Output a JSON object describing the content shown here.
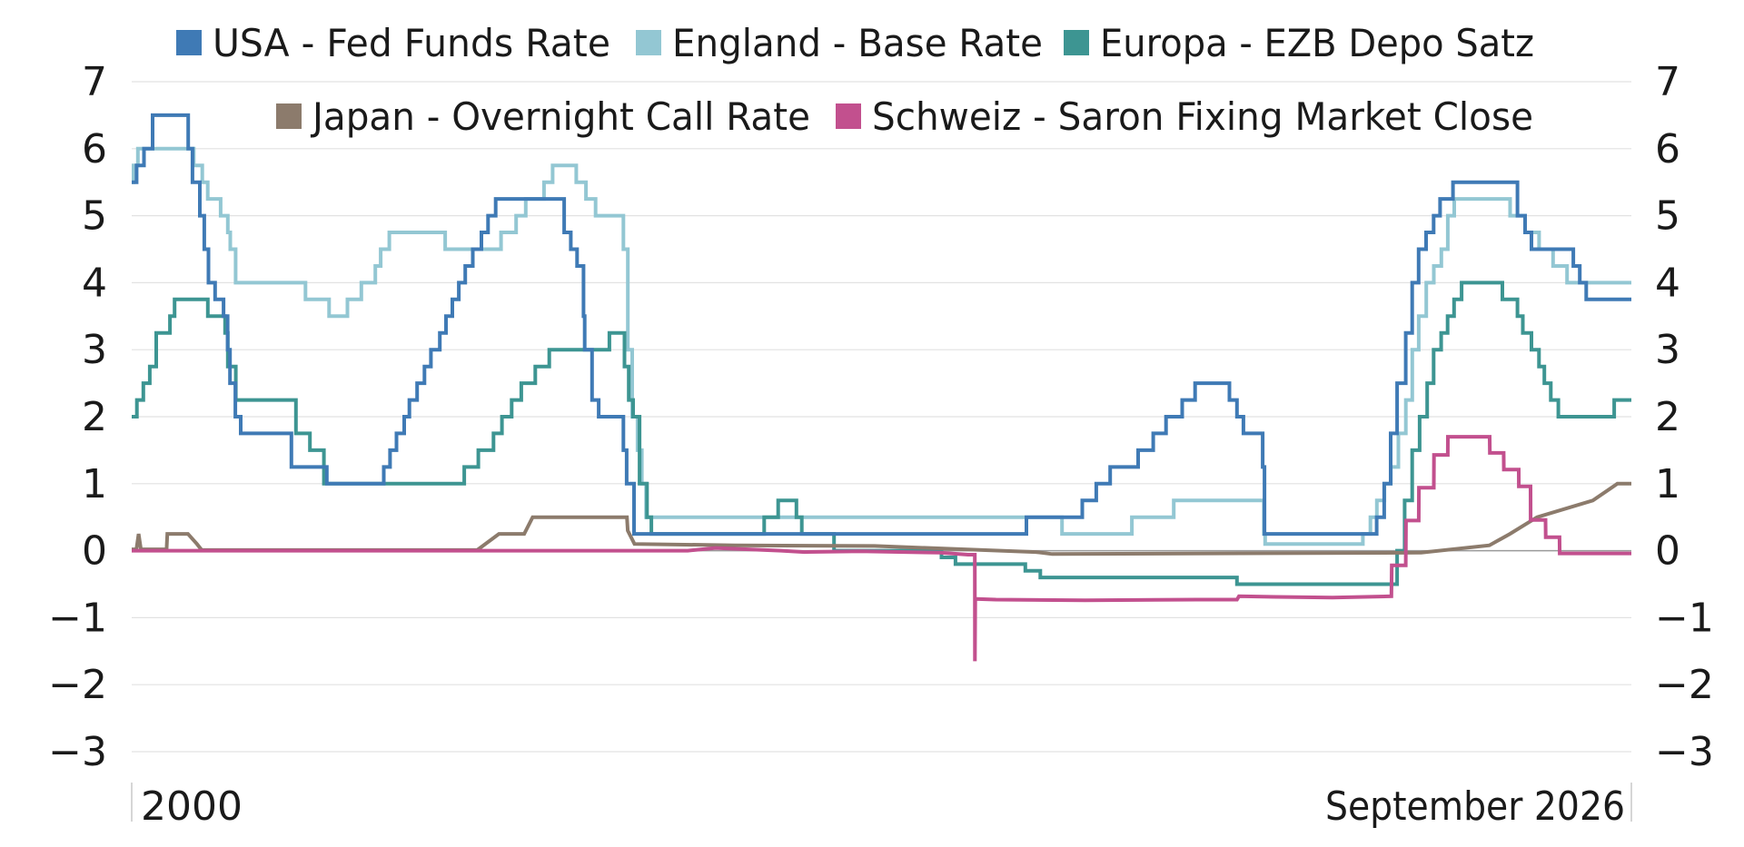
{
  "chart_data": {
    "type": "line",
    "title": "",
    "xlabel": "",
    "ylabel": "",
    "x_range": [
      "2000-01-01",
      "2026-09-30"
    ],
    "x_start_label": "2000",
    "x_end_label": "September 2026",
    "ylim": [
      -3,
      7
    ],
    "y_ticks": [
      7,
      6,
      5,
      4,
      3,
      2,
      1,
      0,
      -1,
      -2,
      -3
    ],
    "y_tick_labels": [
      "7",
      "6",
      "5",
      "4",
      "3",
      "2",
      "1",
      "0",
      "−1",
      "−2",
      "−3"
    ],
    "right_axis": true,
    "grid": true,
    "legend_position": "top",
    "series": [
      {
        "name": "USA - Fed Funds Rate",
        "color": "#3f7ab5",
        "step": true,
        "points": [
          [
            "2000-01-01",
            5.5
          ],
          [
            "2000-02-02",
            5.75
          ],
          [
            "2000-03-21",
            6.0
          ],
          [
            "2000-05-16",
            6.5
          ],
          [
            "2001-01-03",
            6.0
          ],
          [
            "2001-01-31",
            5.5
          ],
          [
            "2001-03-20",
            5.0
          ],
          [
            "2001-04-18",
            4.5
          ],
          [
            "2001-05-15",
            4.0
          ],
          [
            "2001-06-27",
            3.75
          ],
          [
            "2001-08-21",
            3.5
          ],
          [
            "2001-09-17",
            3.0
          ],
          [
            "2001-10-02",
            2.5
          ],
          [
            "2001-11-06",
            2.0
          ],
          [
            "2001-12-11",
            1.75
          ],
          [
            "2002-11-06",
            1.25
          ],
          [
            "2003-06-25",
            1.0
          ],
          [
            "2004-06-30",
            1.25
          ],
          [
            "2004-08-10",
            1.5
          ],
          [
            "2004-09-21",
            1.75
          ],
          [
            "2004-11-10",
            2.0
          ],
          [
            "2004-12-14",
            2.25
          ],
          [
            "2005-02-02",
            2.5
          ],
          [
            "2005-03-22",
            2.75
          ],
          [
            "2005-05-03",
            3.0
          ],
          [
            "2005-06-30",
            3.25
          ],
          [
            "2005-08-09",
            3.5
          ],
          [
            "2005-09-20",
            3.75
          ],
          [
            "2005-11-01",
            4.0
          ],
          [
            "2005-12-13",
            4.25
          ],
          [
            "2006-01-31",
            4.5
          ],
          [
            "2006-03-28",
            4.75
          ],
          [
            "2006-05-10",
            5.0
          ],
          [
            "2006-06-29",
            5.25
          ],
          [
            "2007-09-18",
            4.75
          ],
          [
            "2007-10-31",
            4.5
          ],
          [
            "2007-12-11",
            4.25
          ],
          [
            "2008-01-22",
            3.5
          ],
          [
            "2008-01-30",
            3.0
          ],
          [
            "2008-03-18",
            2.25
          ],
          [
            "2008-04-30",
            2.0
          ],
          [
            "2008-10-08",
            1.5
          ],
          [
            "2008-10-29",
            1.0
          ],
          [
            "2008-12-16",
            0.25
          ],
          [
            "2015-12-16",
            0.5
          ],
          [
            "2016-12-14",
            0.75
          ],
          [
            "2017-03-15",
            1.0
          ],
          [
            "2017-06-14",
            1.25
          ],
          [
            "2017-12-13",
            1.5
          ],
          [
            "2018-03-21",
            1.75
          ],
          [
            "2018-06-13",
            2.0
          ],
          [
            "2018-09-26",
            2.25
          ],
          [
            "2018-12-19",
            2.5
          ],
          [
            "2019-07-31",
            2.25
          ],
          [
            "2019-09-18",
            2.0
          ],
          [
            "2019-10-30",
            1.75
          ],
          [
            "2020-03-03",
            1.25
          ],
          [
            "2020-03-15",
            0.25
          ],
          [
            "2022-03-16",
            0.5
          ],
          [
            "2022-05-04",
            1.0
          ],
          [
            "2022-06-15",
            1.75
          ],
          [
            "2022-07-27",
            2.5
          ],
          [
            "2022-09-21",
            3.25
          ],
          [
            "2022-11-02",
            4.0
          ],
          [
            "2022-12-14",
            4.5
          ],
          [
            "2023-02-01",
            4.75
          ],
          [
            "2023-03-22",
            5.0
          ],
          [
            "2023-05-03",
            5.25
          ],
          [
            "2023-07-26",
            5.5
          ],
          [
            "2024-09-18",
            5.0
          ],
          [
            "2024-11-07",
            4.75
          ],
          [
            "2024-12-18",
            4.5
          ],
          [
            "2025-09-17",
            4.25
          ],
          [
            "2025-10-29",
            4.0
          ],
          [
            "2025-12-10",
            3.75
          ],
          [
            "2026-09-30",
            3.75
          ]
        ]
      },
      {
        "name": "England - Base Rate",
        "color": "#93c7d3",
        "step": true,
        "points": [
          [
            "2000-01-01",
            5.5
          ],
          [
            "2000-01-13",
            5.75
          ],
          [
            "2000-02-10",
            6.0
          ],
          [
            "2001-02-08",
            5.75
          ],
          [
            "2001-04-05",
            5.5
          ],
          [
            "2001-05-10",
            5.25
          ],
          [
            "2001-08-02",
            5.0
          ],
          [
            "2001-09-18",
            4.75
          ],
          [
            "2001-10-04",
            4.5
          ],
          [
            "2001-11-08",
            4.0
          ],
          [
            "2003-02-06",
            3.75
          ],
          [
            "2003-07-10",
            3.5
          ],
          [
            "2003-11-06",
            3.75
          ],
          [
            "2004-02-05",
            4.0
          ],
          [
            "2004-05-06",
            4.25
          ],
          [
            "2004-06-10",
            4.5
          ],
          [
            "2004-08-05",
            4.75
          ],
          [
            "2005-08-04",
            4.5
          ],
          [
            "2006-08-03",
            4.75
          ],
          [
            "2006-11-09",
            5.0
          ],
          [
            "2007-01-11",
            5.25
          ],
          [
            "2007-05-10",
            5.5
          ],
          [
            "2007-07-05",
            5.75
          ],
          [
            "2007-12-06",
            5.5
          ],
          [
            "2008-02-07",
            5.25
          ],
          [
            "2008-04-10",
            5.0
          ],
          [
            "2008-10-08",
            4.5
          ],
          [
            "2008-11-06",
            3.0
          ],
          [
            "2008-12-04",
            2.0
          ],
          [
            "2009-01-08",
            1.5
          ],
          [
            "2009-02-05",
            1.0
          ],
          [
            "2009-03-05",
            0.5
          ],
          [
            "2016-08-04",
            0.25
          ],
          [
            "2017-11-02",
            0.5
          ],
          [
            "2018-08-02",
            0.75
          ],
          [
            "2020-03-11",
            0.25
          ],
          [
            "2020-03-19",
            0.1
          ],
          [
            "2021-12-16",
            0.25
          ],
          [
            "2022-02-03",
            0.5
          ],
          [
            "2022-03-17",
            0.75
          ],
          [
            "2022-05-05",
            1.0
          ],
          [
            "2022-06-16",
            1.25
          ],
          [
            "2022-08-04",
            1.75
          ],
          [
            "2022-09-22",
            2.25
          ],
          [
            "2022-11-03",
            3.0
          ],
          [
            "2022-12-15",
            3.5
          ],
          [
            "2023-02-02",
            4.0
          ],
          [
            "2023-03-23",
            4.25
          ],
          [
            "2023-05-11",
            4.5
          ],
          [
            "2023-06-22",
            5.0
          ],
          [
            "2023-08-03",
            5.25
          ],
          [
            "2024-08-01",
            5.0
          ],
          [
            "2024-11-07",
            4.75
          ],
          [
            "2025-02-06",
            4.5
          ],
          [
            "2025-05-08",
            4.25
          ],
          [
            "2025-08-07",
            4.0
          ],
          [
            "2026-09-30",
            4.0
          ]
        ]
      },
      {
        "name": "Europa - EZB Depo Satz",
        "color": "#3d9592",
        "step": true,
        "points": [
          [
            "2000-01-01",
            2.0
          ],
          [
            "2000-02-04",
            2.25
          ],
          [
            "2000-03-17",
            2.5
          ],
          [
            "2000-04-28",
            2.75
          ],
          [
            "2000-06-09",
            3.25
          ],
          [
            "2000-09-06",
            3.5
          ],
          [
            "2000-10-06",
            3.75
          ],
          [
            "2001-05-11",
            3.5
          ],
          [
            "2001-08-31",
            3.25
          ],
          [
            "2001-09-18",
            2.75
          ],
          [
            "2001-11-09",
            2.25
          ],
          [
            "2002-12-06",
            1.75
          ],
          [
            "2003-03-07",
            1.5
          ],
          [
            "2003-06-06",
            1.0
          ],
          [
            "2005-12-06",
            1.25
          ],
          [
            "2006-03-08",
            1.5
          ],
          [
            "2006-06-15",
            1.75
          ],
          [
            "2006-08-09",
            2.0
          ],
          [
            "2006-10-11",
            2.25
          ],
          [
            "2006-12-13",
            2.5
          ],
          [
            "2007-03-14",
            2.75
          ],
          [
            "2007-06-13",
            3.0
          ],
          [
            "2008-07-09",
            3.25
          ],
          [
            "2008-10-15",
            2.75
          ],
          [
            "2008-11-12",
            2.25
          ],
          [
            "2008-12-10",
            2.0
          ],
          [
            "2009-01-21",
            1.0
          ],
          [
            "2009-03-11",
            0.5
          ],
          [
            "2009-04-08",
            0.25
          ],
          [
            "2011-04-13",
            0.5
          ],
          [
            "2011-07-13",
            0.75
          ],
          [
            "2011-11-09",
            0.5
          ],
          [
            "2011-12-14",
            0.25
          ],
          [
            "2012-07-11",
            0.0
          ],
          [
            "2014-06-11",
            -0.1
          ],
          [
            "2014-09-10",
            -0.2
          ],
          [
            "2015-12-09",
            -0.3
          ],
          [
            "2016-03-16",
            -0.4
          ],
          [
            "2019-09-18",
            -0.5
          ],
          [
            "2022-07-27",
            0.0
          ],
          [
            "2022-09-14",
            0.75
          ],
          [
            "2022-11-02",
            1.5
          ],
          [
            "2022-12-21",
            2.0
          ],
          [
            "2023-02-08",
            2.5
          ],
          [
            "2023-03-22",
            3.0
          ],
          [
            "2023-05-10",
            3.25
          ],
          [
            "2023-06-21",
            3.5
          ],
          [
            "2023-08-02",
            3.75
          ],
          [
            "2023-09-20",
            4.0
          ],
          [
            "2024-06-12",
            3.75
          ],
          [
            "2024-09-18",
            3.5
          ],
          [
            "2024-10-23",
            3.25
          ],
          [
            "2024-12-18",
            3.0
          ],
          [
            "2025-02-05",
            2.75
          ],
          [
            "2025-03-12",
            2.5
          ],
          [
            "2025-04-23",
            2.25
          ],
          [
            "2025-06-11",
            2.0
          ],
          [
            "2026-06-10",
            2.25
          ],
          [
            "2026-09-30",
            2.25
          ]
        ]
      },
      {
        "name": "Japan - Overnight Call Rate",
        "color": "#8c7b6c",
        "step": false,
        "points": [
          [
            "2000-01-01",
            0.02
          ],
          [
            "2000-02-01",
            0.02
          ],
          [
            "2000-02-15",
            0.25
          ],
          [
            "2000-03-01",
            0.02
          ],
          [
            "2000-08-15",
            0.02
          ],
          [
            "2000-08-20",
            0.25
          ],
          [
            "2001-01-01",
            0.25
          ],
          [
            "2001-03-01",
            0.1
          ],
          [
            "2001-04-01",
            0.01
          ],
          [
            "2006-03-01",
            0.01
          ],
          [
            "2006-07-20",
            0.25
          ],
          [
            "2007-01-01",
            0.25
          ],
          [
            "2007-02-25",
            0.5
          ],
          [
            "2008-10-31",
            0.5
          ],
          [
            "2008-11-05",
            0.3
          ],
          [
            "2008-12-19",
            0.1
          ],
          [
            "2010-10-06",
            0.08
          ],
          [
            "2013-04-01",
            0.07
          ],
          [
            "2016-02-16",
            -0.02
          ],
          [
            "2016-06-01",
            -0.05
          ],
          [
            "2022-12-31",
            -0.03
          ],
          [
            "2024-03-19",
            0.08
          ],
          [
            "2024-07-31",
            0.25
          ],
          [
            "2025-01-24",
            0.5
          ],
          [
            "2026-01-22",
            0.75
          ],
          [
            "2026-07-01",
            1.0
          ],
          [
            "2026-09-30",
            1.0
          ]
        ]
      },
      {
        "name": "Schweiz - Saron Fixing Market Close",
        "color": "#c2508e",
        "step": false,
        "points": [
          [
            "2000-01-01",
            0.0
          ],
          [
            "2009-12-01",
            0.0
          ],
          [
            "2010-06-01",
            0.04
          ],
          [
            "2011-01-01",
            0.02
          ],
          [
            "2011-08-01",
            0.0
          ],
          [
            "2012-01-01",
            -0.02
          ],
          [
            "2013-01-01",
            -0.01
          ],
          [
            "2014-06-01",
            -0.03
          ],
          [
            "2014-12-01",
            -0.06
          ],
          [
            "2015-01-14",
            -0.06
          ],
          [
            "2015-01-15",
            -1.65
          ],
          [
            "2015-01-17",
            -0.72
          ],
          [
            "2015-06-01",
            -0.73
          ],
          [
            "2017-01-01",
            -0.74
          ],
          [
            "2019-01-01",
            -0.73
          ],
          [
            "2019-09-18",
            -0.73
          ],
          [
            "2019-10-01",
            -0.68
          ],
          [
            "2020-06-01",
            -0.69
          ],
          [
            "2021-06-01",
            -0.7
          ],
          [
            "2022-06-20",
            -0.68
          ],
          [
            "2022-06-22",
            -0.22
          ],
          [
            "2022-09-21",
            -0.22
          ],
          [
            "2022-09-23",
            0.45
          ],
          [
            "2022-12-15",
            0.45
          ],
          [
            "2022-12-16",
            0.94
          ],
          [
            "2023-03-23",
            0.94
          ],
          [
            "2023-03-24",
            1.43
          ],
          [
            "2023-06-22",
            1.43
          ],
          [
            "2023-06-23",
            1.7
          ],
          [
            "2024-03-21",
            1.7
          ],
          [
            "2024-03-22",
            1.46
          ],
          [
            "2024-06-20",
            1.46
          ],
          [
            "2024-06-21",
            1.21
          ],
          [
            "2024-09-26",
            1.21
          ],
          [
            "2024-09-27",
            0.96
          ],
          [
            "2024-12-12",
            0.96
          ],
          [
            "2024-12-13",
            0.46
          ],
          [
            "2025-03-20",
            0.46
          ],
          [
            "2025-03-21",
            0.2
          ],
          [
            "2025-06-19",
            0.2
          ],
          [
            "2025-06-20",
            -0.04
          ],
          [
            "2026-09-30",
            -0.04
          ]
        ]
      }
    ]
  }
}
